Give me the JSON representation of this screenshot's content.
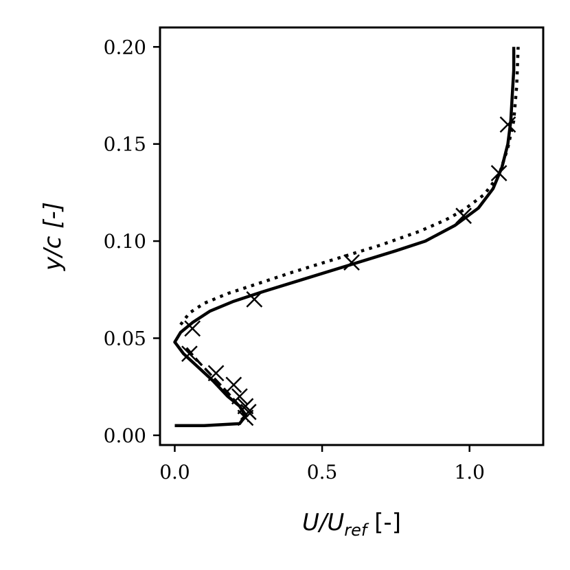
{
  "chart_data": {
    "type": "line",
    "xlabel_parts": [
      "U/U",
      "ref",
      " [-]"
    ],
    "ylabel": "y/c [-]",
    "xlim": [
      -0.05,
      1.25
    ],
    "ylim": [
      -0.005,
      0.21
    ],
    "xticks": [
      0.0,
      0.5,
      1.0
    ],
    "xtick_labels": [
      "0.0",
      "0.5",
      "1.0"
    ],
    "yticks": [
      0.0,
      0.05,
      0.1,
      0.15,
      0.2
    ],
    "ytick_labels": [
      "0.00",
      "0.05",
      "0.10",
      "0.15",
      "0.20"
    ],
    "grid": false,
    "series": [
      {
        "style": "solid",
        "x": [
          0.0,
          0.1,
          0.22,
          0.24,
          0.22,
          0.18,
          0.13,
          0.08,
          0.03,
          0.0,
          0.02,
          0.06,
          0.12,
          0.2,
          0.3,
          0.45,
          0.6,
          0.75,
          0.85,
          0.95,
          1.03,
          1.08,
          1.11,
          1.13,
          1.14,
          1.145,
          1.15,
          1.15
        ],
        "y": [
          0.005,
          0.005,
          0.006,
          0.01,
          0.015,
          0.02,
          0.028,
          0.035,
          0.042,
          0.048,
          0.053,
          0.058,
          0.064,
          0.069,
          0.074,
          0.081,
          0.088,
          0.095,
          0.1,
          0.108,
          0.117,
          0.127,
          0.138,
          0.15,
          0.162,
          0.175,
          0.188,
          0.2
        ]
      },
      {
        "style": "dotted",
        "x": [
          0.02,
          0.05,
          0.1,
          0.18,
          0.28,
          0.4,
          0.55,
          0.7,
          0.83,
          0.92,
          0.98,
          1.05,
          1.1,
          1.13,
          1.15,
          1.16,
          1.165
        ],
        "y": [
          0.057,
          0.063,
          0.068,
          0.073,
          0.078,
          0.084,
          0.091,
          0.098,
          0.105,
          0.111,
          0.116,
          0.124,
          0.134,
          0.148,
          0.162,
          0.18,
          0.2
        ]
      },
      {
        "style": "dashed",
        "x": [
          0.04,
          0.08,
          0.13,
          0.18,
          0.22,
          0.245,
          0.25
        ],
        "y": [
          0.045,
          0.038,
          0.03,
          0.022,
          0.015,
          0.01,
          0.007
        ]
      },
      {
        "style": "markers-x",
        "x": [
          0.05,
          0.06,
          0.14,
          0.2,
          0.22,
          0.24,
          0.25,
          0.24,
          0.27,
          0.6,
          0.98,
          1.1,
          1.13
        ],
        "y": [
          0.042,
          0.055,
          0.032,
          0.026,
          0.02,
          0.015,
          0.012,
          0.009,
          0.07,
          0.089,
          0.113,
          0.135,
          0.16
        ]
      }
    ]
  }
}
